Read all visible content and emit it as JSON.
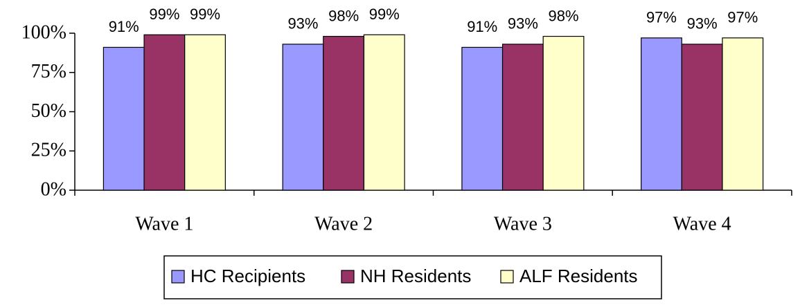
{
  "chart_data": {
    "type": "bar",
    "categories": [
      "Wave 1",
      "Wave 2",
      "Wave 3",
      "Wave 4"
    ],
    "series": [
      {
        "name": "HC Recipients",
        "color": "#9999ff",
        "values": [
          91,
          93,
          91,
          97
        ],
        "value_labels": [
          "91%",
          "93%",
          "91%",
          "97%"
        ]
      },
      {
        "name": "NH Residents",
        "color": "#993366",
        "values": [
          99,
          98,
          93,
          93
        ],
        "value_labels": [
          "99%",
          "98%",
          "93%",
          "93%"
        ]
      },
      {
        "name": "ALF Residents",
        "color": "#ffffcc",
        "values": [
          99,
          99,
          98,
          97
        ],
        "value_labels": [
          "99%",
          "99%",
          "98%",
          "97%"
        ]
      }
    ],
    "ylim": [
      0,
      100
    ],
    "yticks": [
      {
        "value": 0,
        "label": "0%"
      },
      {
        "value": 25,
        "label": "25%"
      },
      {
        "value": 50,
        "label": "50%"
      },
      {
        "value": 75,
        "label": "75%"
      },
      {
        "value": 100,
        "label": "100%"
      }
    ],
    "grid": false,
    "legend": "bottom"
  }
}
